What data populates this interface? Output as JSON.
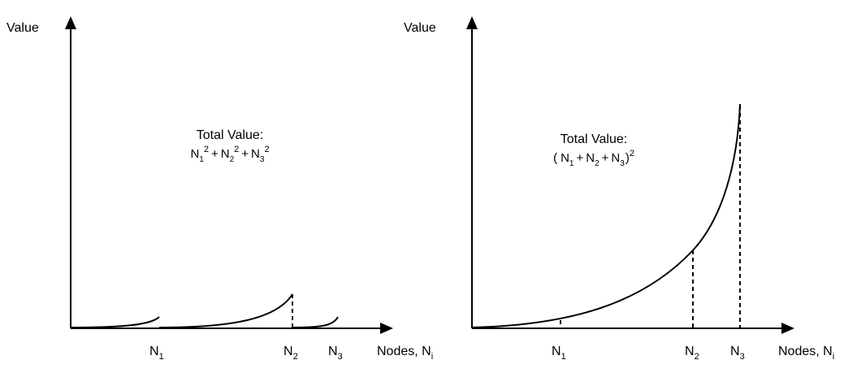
{
  "left_panel": {
    "ylabel": "Value",
    "xlabel_base": "Nodes, N",
    "xlabel_sub": "i",
    "annotation_title": "Total Value:",
    "annotation_formula": {
      "t1": "N",
      "s1": "1",
      "p1": "2",
      "plus": "+",
      "t2": "N",
      "s2": "2",
      "p2": "2",
      "t3": "N",
      "s3": "3",
      "p3": "2"
    },
    "ticks": [
      {
        "base": "N",
        "sub": "1"
      },
      {
        "base": "N",
        "sub": "2"
      },
      {
        "base": "N",
        "sub": "3"
      }
    ]
  },
  "right_panel": {
    "ylabel": "Value",
    "xlabel_base": "Nodes, N",
    "xlabel_sub": "i",
    "annotation_title": "Total Value:",
    "annotation_formula": {
      "open": "(",
      "t1": "N",
      "s1": "1",
      "plus": "+",
      "t2": "N",
      "s2": "2",
      "t3": "N",
      "s3": "3",
      "close": ")",
      "p": "2"
    },
    "ticks": [
      {
        "base": "N",
        "sub": "1"
      },
      {
        "base": "N",
        "sub": "2"
      },
      {
        "base": "N",
        "sub": "3"
      }
    ]
  }
}
